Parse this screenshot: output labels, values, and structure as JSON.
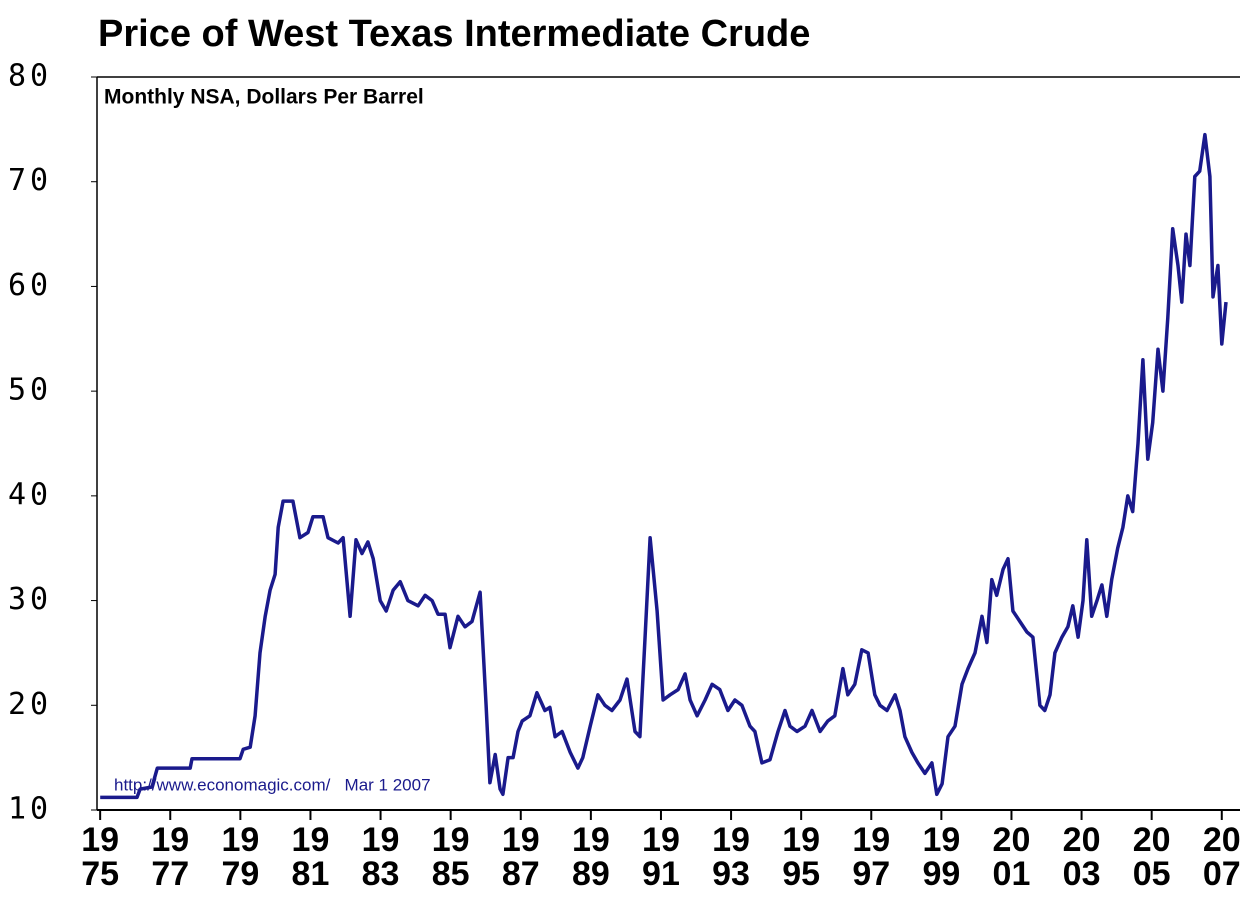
{
  "chart_data": {
    "type": "line",
    "title": "Price of West Texas Intermediate Crude",
    "subtitle": "Monthly NSA, Dollars Per Barrel",
    "annotation": "http://www.economagic.com/   Mar 1 2007",
    "color": "#1a1a8c",
    "xlim": [
      1974.91,
      2007.52
    ],
    "ylim": [
      10,
      80
    ],
    "xticks": [
      1975,
      1977,
      1979,
      1981,
      1983,
      1985,
      1987,
      1989,
      1991,
      1993,
      1995,
      1997,
      1999,
      2001,
      2003,
      2005,
      2007
    ],
    "yticks": [
      10,
      20,
      30,
      40,
      50,
      60,
      70,
      80
    ],
    "x": [
      1975.0,
      1976.05,
      1976.14,
      1976.48,
      1976.63,
      1977.57,
      1977.62,
      1978.99,
      1979.08,
      1979.28,
      1979.42,
      1979.56,
      1979.71,
      1979.85,
      1979.99,
      1980.08,
      1980.22,
      1980.5,
      1980.7,
      1980.93,
      1981.07,
      1981.36,
      1981.5,
      1981.79,
      1981.93,
      1982.13,
      1982.3,
      1982.47,
      1982.64,
      1982.79,
      1982.99,
      1983.16,
      1983.36,
      1983.56,
      1983.78,
      1984.07,
      1984.27,
      1984.47,
      1984.64,
      1984.84,
      1984.98,
      1985.21,
      1985.41,
      1985.61,
      1985.84,
      1986.01,
      1986.12,
      1986.27,
      1986.41,
      1986.49,
      1986.64,
      1986.78,
      1986.92,
      1987.04,
      1987.26,
      1987.46,
      1987.69,
      1987.83,
      1987.98,
      1988.18,
      1988.41,
      1988.63,
      1988.77,
      1988.98,
      1989.2,
      1989.4,
      1989.6,
      1989.83,
      1990.03,
      1990.26,
      1990.4,
      1990.54,
      1990.69,
      1990.89,
      1991.06,
      1991.26,
      1991.49,
      1991.69,
      1991.83,
      1992.03,
      1992.26,
      1992.46,
      1992.68,
      1992.91,
      1993.11,
      1993.31,
      1993.54,
      1993.68,
      1993.88,
      1994.11,
      1994.34,
      1994.54,
      1994.68,
      1994.88,
      1995.11,
      1995.31,
      1995.54,
      1995.76,
      1995.96,
      1996.19,
      1996.33,
      1996.53,
      1996.73,
      1996.91,
      1997.1,
      1997.25,
      1997.45,
      1997.68,
      1997.82,
      1997.96,
      1998.16,
      1998.33,
      1998.53,
      1998.73,
      1998.87,
      1999.02,
      1999.19,
      1999.39,
      1999.59,
      1999.76,
      1999.96,
      2000.16,
      2000.3,
      2000.44,
      2000.58,
      2000.76,
      2000.9,
      2001.04,
      2001.24,
      2001.44,
      2001.61,
      2001.81,
      2001.95,
      2002.1,
      2002.24,
      2002.44,
      2002.61,
      2002.75,
      2002.9,
      2003.04,
      2003.15,
      2003.29,
      2003.44,
      2003.58,
      2003.72,
      2003.86,
      2004.03,
      2004.18,
      2004.32,
      2004.46,
      2004.61,
      2004.75,
      2004.89,
      2005.03,
      2005.18,
      2005.32,
      2005.46,
      2005.6,
      2005.75,
      2005.86,
      2005.98,
      2006.09,
      2006.23,
      2006.37,
      2006.52,
      2006.66,
      2006.75,
      2006.89,
      2007.0,
      2007.12
    ],
    "values": [
      11.2,
      11.2,
      12.0,
      12.2,
      14.0,
      14.0,
      14.9,
      14.9,
      15.8,
      16.0,
      19,
      25,
      28.5,
      31,
      32.5,
      37,
      39.5,
      39.5,
      36,
      36.5,
      38,
      38,
      36,
      35.5,
      36,
      28.5,
      35.8,
      34.5,
      35.6,
      34,
      30,
      29,
      31,
      31.8,
      30,
      29.5,
      30.5,
      30,
      28.7,
      28.7,
      25.5,
      28.5,
      27.5,
      28,
      30.8,
      20,
      12.6,
      15.3,
      12,
      11.5,
      15,
      15,
      17.5,
      18.5,
      19,
      21.2,
      19.5,
      19.8,
      17,
      17.5,
      15.5,
      14.0,
      15,
      18,
      21,
      20,
      19.5,
      20.5,
      22.5,
      17.5,
      17,
      26,
      36,
      29,
      20.5,
      21,
      21.5,
      23,
      20.5,
      19,
      20.5,
      22,
      21.5,
      19.5,
      20.5,
      20,
      18,
      17.5,
      14.5,
      14.8,
      17.5,
      19.5,
      18,
      17.5,
      18,
      19.5,
      17.5,
      18.5,
      19,
      23.5,
      21,
      22,
      25.3,
      25,
      21,
      20,
      19.5,
      21,
      19.5,
      17,
      15.5,
      14.5,
      13.5,
      14.5,
      11.5,
      12.5,
      17,
      18,
      22,
      23.5,
      25,
      28.5,
      26,
      32,
      30.5,
      33,
      34,
      29,
      28,
      27,
      26.5,
      20,
      19.5,
      21,
      25,
      26.5,
      27.5,
      29.5,
      26.5,
      30,
      35.8,
      28.5,
      30,
      31.5,
      28.5,
      32,
      35,
      37,
      40,
      38.5,
      45,
      53,
      43.5,
      47,
      54,
      50,
      57,
      65.5,
      62,
      58.5,
      65,
      62,
      70.5,
      71,
      74.5,
      70.5,
      59,
      62,
      54.5,
      58.5
    ]
  }
}
